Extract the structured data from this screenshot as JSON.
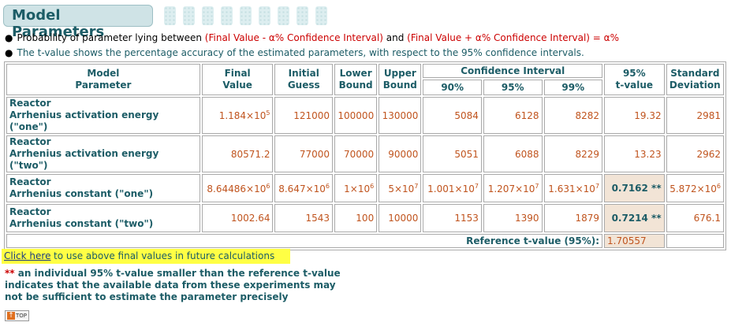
{
  "page": {
    "title": "Model Parameters",
    "bullet1": {
      "prefix": "Probability of parameter lying between ",
      "lower": "(Final Value - α% Confidence Interval)",
      "mid": " and ",
      "upper": "(Final Value + α% Confidence Interval)",
      "suffix": " = α%"
    },
    "bullet2": "The t-value shows the percentage accuracy of the estimated parameters, with respect to the 95% confidence intervals."
  },
  "table": {
    "headers": {
      "param_line1": "Model",
      "param_line2": "Parameter",
      "final_line1": "Final",
      "final_line2": "Value",
      "initial_line1": "Initial",
      "initial_line2": "Guess",
      "lower_line1": "Lower",
      "lower_line2": "Bound",
      "upper_line1": "Upper",
      "upper_line2": "Bound",
      "ci": "Confidence Interval",
      "ci90": "90%",
      "ci95": "95%",
      "ci99": "99%",
      "tval_line1": "95%",
      "tval_line2": "t-value",
      "std_line1": "Standard",
      "std_line2": "Deviation"
    },
    "rows": [
      {
        "group": "Reactor",
        "name": "Arrhenius activation energy (\"one\")",
        "final_mant": "1.184×10",
        "final_exp": "5",
        "initial": "121000",
        "lower": "100000",
        "upper": "130000",
        "ci90": "5084",
        "ci95": "6128",
        "ci99": "8282",
        "tval": "19.32",
        "std": "2981"
      },
      {
        "group": "Reactor",
        "name": "Arrhenius activation energy (\"two\")",
        "final": "80571.2",
        "initial": "77000",
        "lower": "70000",
        "upper": "90000",
        "ci90": "5051",
        "ci95": "6088",
        "ci99": "8229",
        "tval": "13.23",
        "std": "2962"
      },
      {
        "group": "Reactor",
        "name": "Arrhenius constant (\"one\")",
        "final_mant": "8.64486×10",
        "final_exp": "6",
        "initial_mant": "8.647×10",
        "initial_exp": "6",
        "lower_mant": "1×10",
        "lower_exp": "6",
        "upper_mant": "5×10",
        "upper_exp": "7",
        "ci90_mant": "1.001×10",
        "ci90_exp": "7",
        "ci95_mant": "1.207×10",
        "ci95_exp": "7",
        "ci99_mant": "1.631×10",
        "ci99_exp": "7",
        "tval": "0.7162 **",
        "std_mant": "5.872×10",
        "std_exp": "6"
      },
      {
        "group": "Reactor",
        "name": "Arrhenius constant (\"two\")",
        "final": "1002.64",
        "initial": "1543",
        "lower": "100",
        "upper": "10000",
        "ci90": "1153",
        "ci95": "1390",
        "ci99": "1879",
        "tval": "0.7214 **",
        "std": "676.1"
      }
    ],
    "reference_label": "Reference t-value (95%):",
    "reference_value": "1.70557"
  },
  "footer": {
    "click_link": "Click here",
    "click_rest": " to use above final values in future calculations",
    "footnote_stars": "**",
    "footnote_text": " an individual 95% t-value smaller than the reference t-value indicates that the available data from these experiments may not be sufficient to estimate the parameter precisely",
    "top_button": "TOP",
    "top_arrow": "↑"
  },
  "colors": {
    "heading": "#1c5c66",
    "value": "#c0541e",
    "highlight": "#f2e4d6",
    "link_bar": "#ffff44"
  }
}
